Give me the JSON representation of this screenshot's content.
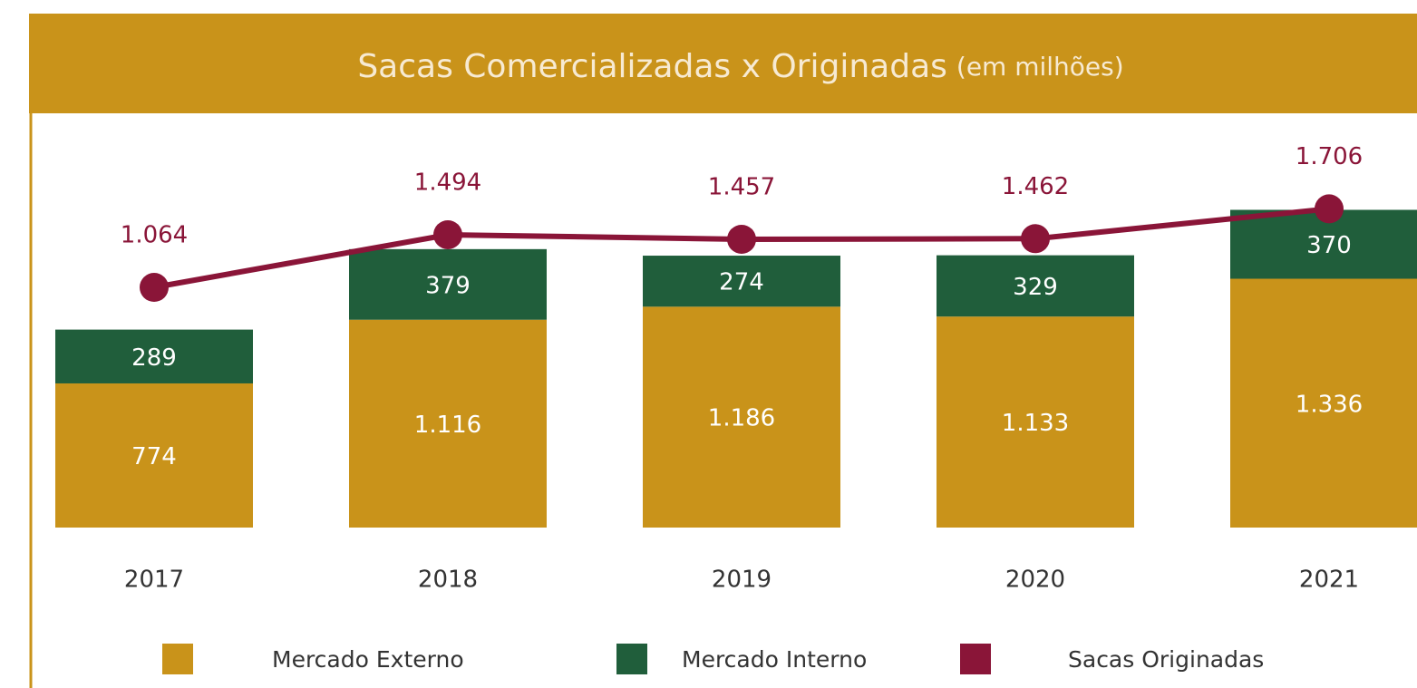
{
  "chart_data": {
    "type": "bar",
    "title": "Sacas Comercializadas x Originadas",
    "subtitle": "(em milhões)",
    "categories": [
      "2017",
      "2018",
      "2019",
      "2020",
      "2021"
    ],
    "series": [
      {
        "name": "Mercado Externo",
        "color": "#c9931a",
        "type": "bar",
        "values": [
          774,
          1116,
          1186,
          1133,
          1336
        ],
        "value_labels": [
          "774",
          "1.116",
          "1.186",
          "1.133",
          "1.336"
        ]
      },
      {
        "name": "Mercado Interno",
        "color": "#205e3b",
        "type": "bar",
        "values": [
          289,
          379,
          274,
          329,
          370
        ]
      },
      {
        "name": "Sacas Originadas",
        "color": "#8a1538",
        "type": "line",
        "axis": "y2",
        "values": [
          1064,
          1494,
          1457,
          1462,
          1706
        ],
        "value_labels": [
          "1.064",
          "1.494",
          "1.457",
          "1.462",
          "1.706"
        ]
      }
    ],
    "stacked": true,
    "ylim": [
      0,
      2200
    ],
    "y2lim": [
      -900,
      2450
    ],
    "legend": "bottom"
  }
}
